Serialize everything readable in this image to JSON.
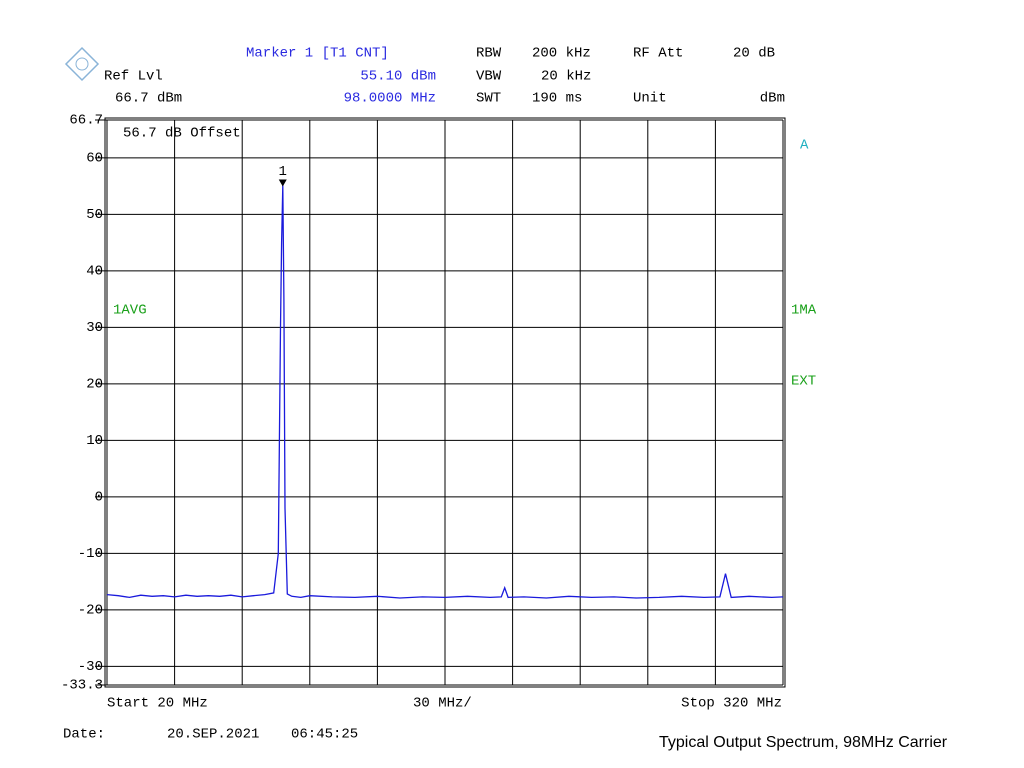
{
  "header": {
    "marker_title": "Marker 1 [T1 CNT]",
    "ref_lvl_label": "Ref Lvl",
    "ref_lvl_value": "66.7 dBm",
    "marker_level": "55.10 dBm",
    "marker_freq": "98.0000 MHz",
    "rbw_label": "RBW",
    "rbw_value": "200 kHz",
    "rf_att_label": "RF Att",
    "rf_att_value": "20 dB",
    "vbw_label": "VBW",
    "vbw_value": "20 kHz",
    "swt_label": "SWT",
    "swt_value": "190 ms",
    "unit_label": "Unit",
    "unit_value": "dBm"
  },
  "annotations": {
    "offset": "56.7 dB Offset",
    "trace_a": "A",
    "avg": "1AVG",
    "ma": "1MA",
    "ext": "EXT",
    "start": "Start 20 MHz",
    "span_div": "30 MHz/",
    "stop": "Stop 320 MHz"
  },
  "footer": {
    "date_label": "Date:",
    "date": "20.SEP.2021",
    "time": "06:45:25",
    "caption": "Typical Output Spectrum, 98MHz Carrier"
  },
  "chart_data": {
    "type": "line",
    "color": "#1a1adc",
    "grid": true,
    "xlim": [
      20,
      320
    ],
    "xticks": [
      20,
      50,
      80,
      110,
      140,
      170,
      200,
      230,
      260,
      290,
      320
    ],
    "ylim": [
      -33.3,
      66.7
    ],
    "yticks": [
      66.7,
      60,
      50,
      40,
      30,
      20,
      10,
      0,
      -10,
      -20,
      -30,
      -33.3
    ],
    "x": [
      20,
      25,
      30,
      35,
      40,
      45,
      50,
      55,
      60,
      65,
      70,
      75,
      80,
      85,
      90,
      94,
      96,
      97,
      97.5,
      98,
      98.5,
      99,
      100,
      102,
      106,
      110,
      120,
      130,
      140,
      150,
      160,
      170,
      180,
      190,
      195,
      196.5,
      198,
      205,
      215,
      225,
      235,
      245,
      255,
      265,
      275,
      285,
      292,
      294.5,
      297,
      305,
      315,
      320
    ],
    "values": [
      -17.3,
      -17.5,
      -17.8,
      -17.4,
      -17.6,
      -17.5,
      -17.7,
      -17.4,
      -17.6,
      -17.5,
      -17.6,
      -17.4,
      -17.7,
      -17.5,
      -17.3,
      -17.0,
      -10,
      30,
      45,
      55.1,
      35,
      -2,
      -17.2,
      -17.6,
      -17.8,
      -17.5,
      -17.7,
      -17.8,
      -17.6,
      -17.9,
      -17.7,
      -17.8,
      -17.6,
      -17.8,
      -17.7,
      -16.1,
      -17.8,
      -17.7,
      -17.9,
      -17.6,
      -17.8,
      -17.7,
      -17.9,
      -17.8,
      -17.6,
      -17.8,
      -17.7,
      -13.6,
      -17.8,
      -17.6,
      -17.8,
      -17.7
    ],
    "marker": {
      "label": "1",
      "x": 98,
      "value": 55.1
    }
  }
}
